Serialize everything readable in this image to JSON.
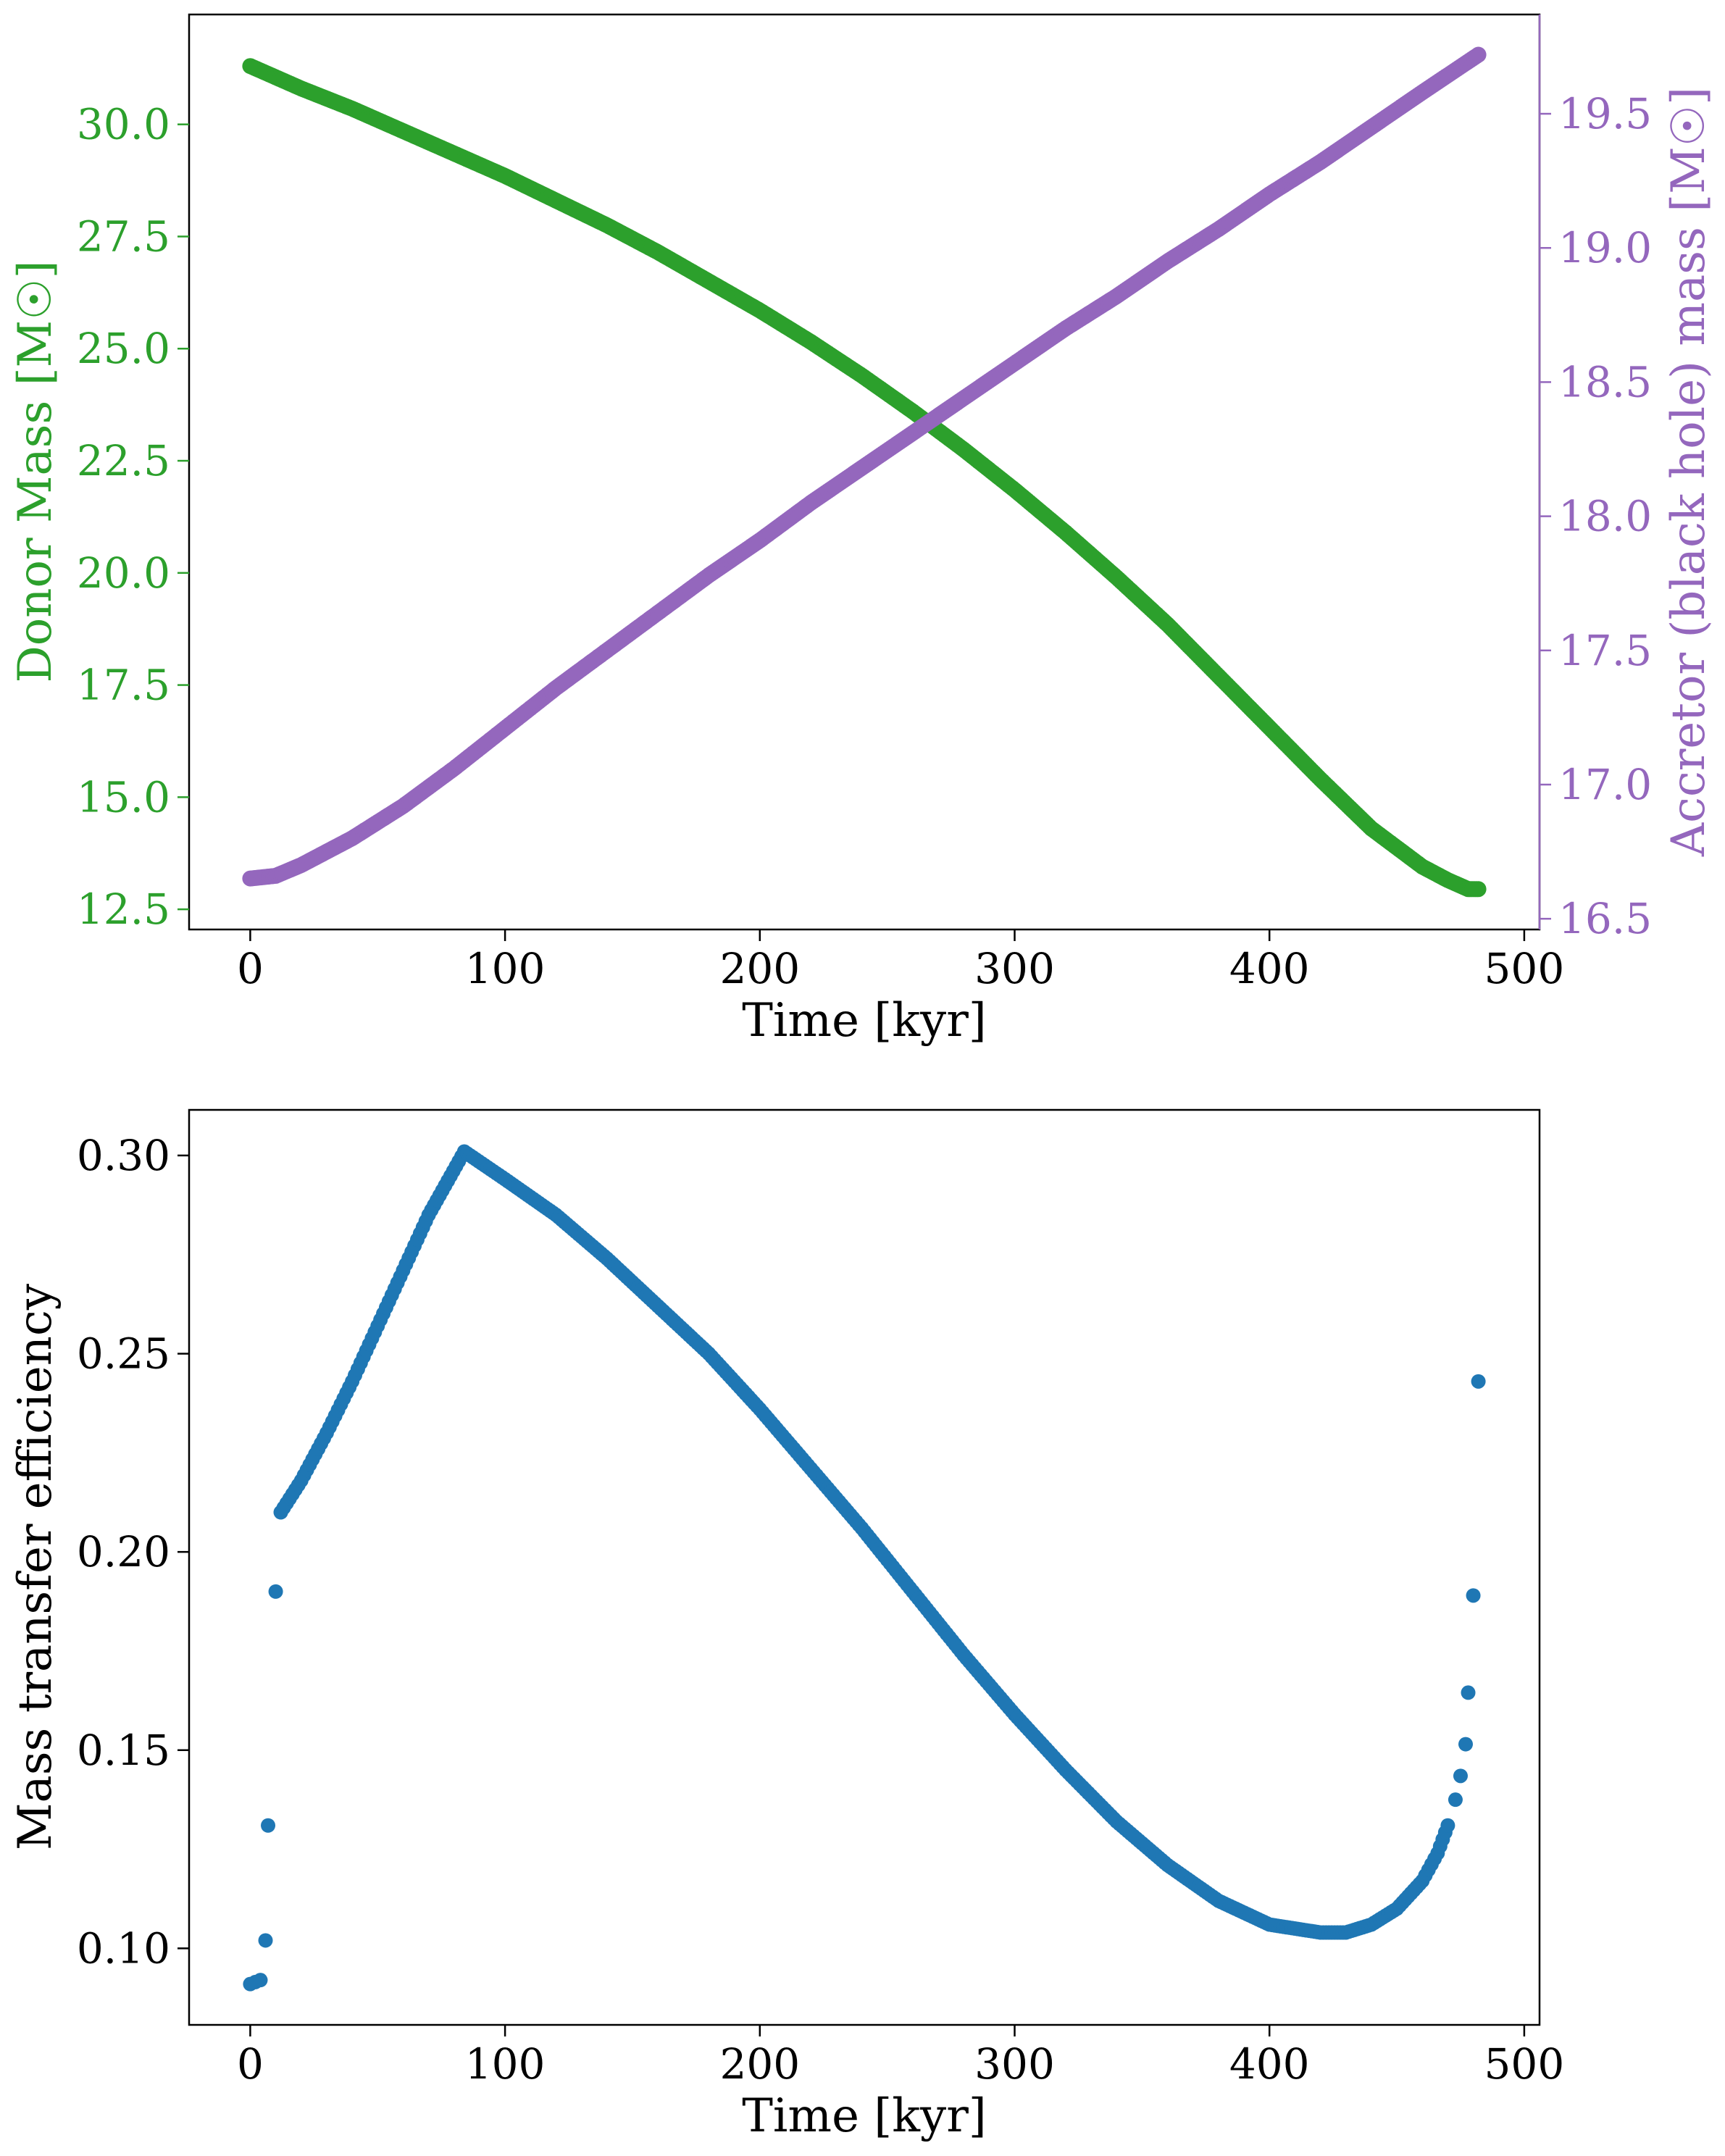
{
  "chart_data": [
    {
      "type": "scatter",
      "xlabel": "Time [kyr]",
      "ylabel": "Donor Mass [M☉]",
      "ylabel_right": "Accretor (black hole) mass [M☉]",
      "xlim": [
        -24,
        506
      ],
      "ylim": [
        12.05,
        32.45
      ],
      "ylim_right": [
        16.46,
        19.87
      ],
      "x_ticks": [
        0,
        100,
        200,
        300,
        400,
        500
      ],
      "y_ticks": [
        12.5,
        15.0,
        17.5,
        20.0,
        22.5,
        25.0,
        27.5,
        30.0
      ],
      "y_ticks_right": [
        16.5,
        17.0,
        17.5,
        18.0,
        18.5,
        19.0,
        19.5
      ],
      "grid": false,
      "legend": "none",
      "series": [
        {
          "axis": "left",
          "color": "#2ca02c",
          "x": [
            0,
            10,
            20,
            40,
            60,
            80,
            100,
            120,
            140,
            160,
            180,
            200,
            220,
            240,
            260,
            280,
            300,
            320,
            340,
            360,
            380,
            400,
            420,
            440,
            460,
            470,
            478,
            482
          ],
          "y": [
            31.3,
            31.05,
            30.8,
            30.35,
            29.85,
            29.35,
            28.85,
            28.3,
            27.75,
            27.15,
            26.5,
            25.85,
            25.15,
            24.4,
            23.6,
            22.75,
            21.85,
            20.9,
            19.9,
            18.85,
            17.7,
            16.55,
            15.4,
            14.3,
            13.45,
            13.15,
            12.95,
            12.95
          ]
        },
        {
          "axis": "right",
          "color": "#9467bd",
          "x": [
            0,
            5,
            10,
            20,
            40,
            60,
            80,
            100,
            120,
            140,
            160,
            180,
            200,
            220,
            240,
            260,
            280,
            300,
            320,
            340,
            360,
            380,
            400,
            420,
            440,
            460,
            482
          ],
          "y": [
            16.65,
            16.655,
            16.66,
            16.7,
            16.8,
            16.92,
            17.06,
            17.21,
            17.36,
            17.5,
            17.64,
            17.78,
            17.91,
            18.05,
            18.18,
            18.31,
            18.44,
            18.57,
            18.7,
            18.82,
            18.95,
            19.07,
            19.2,
            19.32,
            19.45,
            19.58,
            19.72
          ]
        }
      ]
    },
    {
      "type": "scatter",
      "xlabel": "Time [kyr]",
      "ylabel": "Mass transfer efficiency",
      "xlim": [
        -24,
        506
      ],
      "ylim": [
        0.0807,
        0.3115
      ],
      "x_ticks": [
        0,
        100,
        200,
        300,
        400,
        500
      ],
      "y_ticks": [
        0.1,
        0.15,
        0.2,
        0.25,
        0.3
      ],
      "grid": false,
      "legend": "none",
      "series": [
        {
          "color": "#1f77b4",
          "points": [
            [
              0,
              0.091
            ],
            [
              2,
              0.0915
            ],
            [
              4,
              0.092
            ],
            [
              6,
              0.102
            ],
            [
              7,
              0.131
            ],
            [
              10,
              0.19
            ],
            [
              12,
              0.21
            ]
          ],
          "curve": [
            [
              12,
              0.21
            ],
            [
              20,
              0.218
            ],
            [
              30,
              0.23
            ],
            [
              40,
              0.243
            ],
            [
              50,
              0.257
            ],
            [
              60,
              0.271
            ],
            [
              70,
              0.285
            ],
            [
              84,
              0.301
            ],
            [
              100,
              0.294
            ],
            [
              120,
              0.285
            ],
            [
              140,
              0.274
            ],
            [
              160,
              0.262
            ],
            [
              180,
              0.25
            ],
            [
              200,
              0.236
            ],
            [
              220,
              0.221
            ],
            [
              240,
              0.206
            ],
            [
              260,
              0.19
            ],
            [
              280,
              0.174
            ],
            [
              300,
              0.159
            ],
            [
              320,
              0.145
            ],
            [
              340,
              0.132
            ],
            [
              360,
              0.121
            ],
            [
              380,
              0.112
            ],
            [
              400,
              0.106
            ],
            [
              420,
              0.104
            ],
            [
              430,
              0.104
            ],
            [
              440,
              0.106
            ],
            [
              450,
              0.11
            ],
            [
              460,
              0.117
            ],
            [
              466,
              0.124
            ],
            [
              470,
              0.131
            ]
          ],
          "tail_points": [
            [
              473,
              0.1375
            ],
            [
              475,
              0.1435
            ],
            [
              477,
              0.1515
            ],
            [
              478,
              0.1645
            ],
            [
              480,
              0.189
            ],
            [
              482,
              0.243
            ]
          ]
        }
      ]
    }
  ]
}
